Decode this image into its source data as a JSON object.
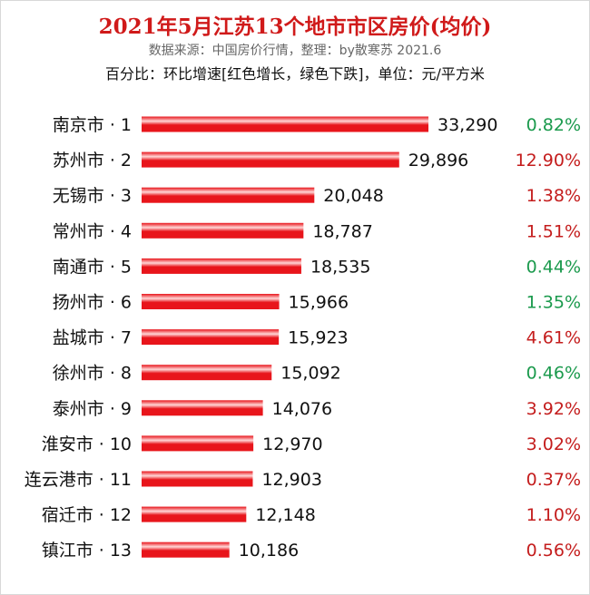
{
  "chart_data": {
    "type": "bar",
    "orientation": "horizontal",
    "title": "2021年5月江苏13个地市市区房价(均价)",
    "subtitle": "数据来源：中国房价行情，整理：by散寒苏  2021.6",
    "note": "百分比：环比增速[红色增长，绿色下跌]，单位：元/平方米",
    "categories": [
      "南京市 · 1",
      "苏州市 · 2",
      "无锡市 · 3",
      "常州市 · 4",
      "南通市 · 5",
      "扬州市 · 6",
      "盐城市 · 7",
      "徐州市 · 8",
      "泰州市 · 9",
      "淮安市 · 10",
      "连云港市 · 11",
      "宿迁市 · 12",
      "镇江市 · 13"
    ],
    "values": [
      33290,
      29896,
      20048,
      18787,
      18535,
      15966,
      15923,
      15092,
      14076,
      12970,
      12903,
      12148,
      10186
    ],
    "value_labels": [
      "33,290",
      "29,896",
      "20,048",
      "18,787",
      "18,535",
      "15,966",
      "15,923",
      "15,092",
      "14,076",
      "12,970",
      "12,903",
      "12,148",
      "10,186"
    ],
    "growth_labels": [
      "0.82%",
      "12.90%",
      "1.38%",
      "1.51%",
      "0.44%",
      "1.35%",
      "4.61%",
      "0.46%",
      "3.92%",
      "3.02%",
      "0.37%",
      "1.10%",
      "0.56%"
    ],
    "growth_direction": [
      "down",
      "up",
      "up",
      "up",
      "down",
      "down",
      "up",
      "down",
      "up",
      "up",
      "up",
      "up",
      "up"
    ],
    "colors": {
      "bar_main": "#e8151b",
      "bar_highlight": "#ffd6d6",
      "title": "#d01a1a",
      "up": "#c41d1d",
      "down": "#1b9a4d"
    },
    "xlim": [
      0,
      33290
    ]
  }
}
